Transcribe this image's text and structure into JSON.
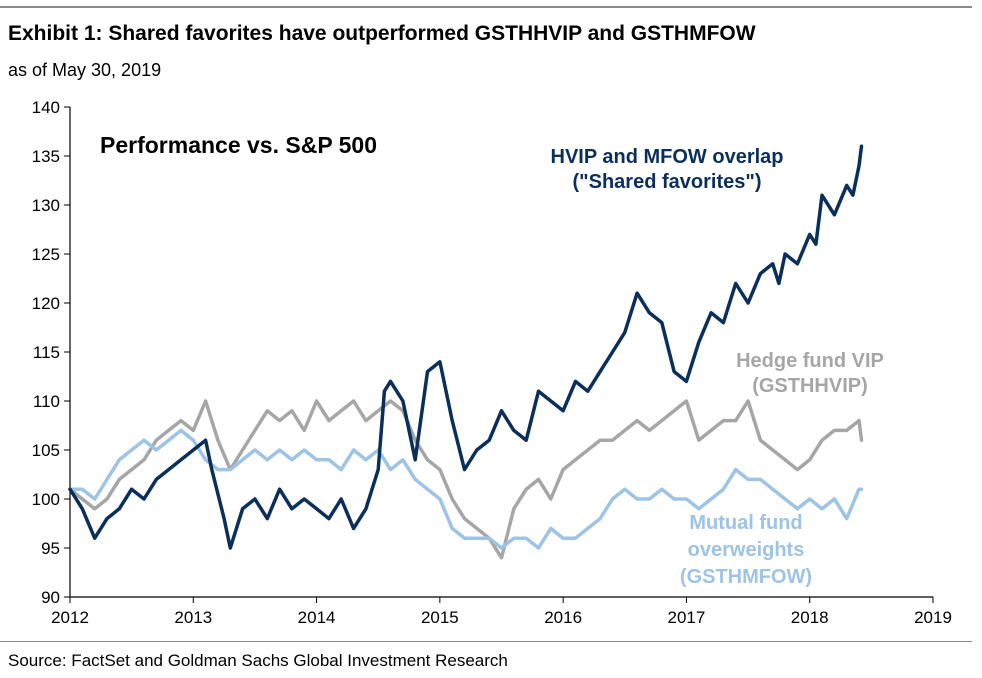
{
  "header": {
    "title": "Exhibit 1: Shared favorites have outperformed GSTHHVIP and GSTHMFOW",
    "subtitle": "as of May 30, 2019"
  },
  "footer": {
    "source": "Source:  FactSet and Goldman Sachs Global Investment Research"
  },
  "chart_data": {
    "type": "line",
    "title": "Performance vs. S&P 500",
    "xlabel": "",
    "ylabel": "",
    "xlim": [
      2012,
      2019
    ],
    "ylim": [
      90,
      140
    ],
    "x_ticks": [
      "2012",
      "2013",
      "2014",
      "2015",
      "2016",
      "2017",
      "2018",
      "2019"
    ],
    "y_ticks": [
      "90",
      "95",
      "100",
      "105",
      "110",
      "115",
      "120",
      "125",
      "130",
      "135",
      "140"
    ],
    "grid": false,
    "legend": "inline labels",
    "series": [
      {
        "name": "HVIP and MFOW overlap (\"Shared favorites\")",
        "label_lines": [
          "HVIP and MFOW overlap",
          "(\"Shared favorites\")"
        ],
        "color": "#0b2f5b",
        "x": [
          2012.0,
          2012.1,
          2012.2,
          2012.3,
          2012.4,
          2012.5,
          2012.6,
          2012.7,
          2012.8,
          2012.9,
          2013.0,
          2013.1,
          2013.15,
          2013.25,
          2013.3,
          2013.4,
          2013.5,
          2013.6,
          2013.7,
          2013.8,
          2013.9,
          2014.0,
          2014.1,
          2014.2,
          2014.3,
          2014.4,
          2014.5,
          2014.55,
          2014.6,
          2014.7,
          2014.8,
          2014.9,
          2015.0,
          2015.1,
          2015.2,
          2015.3,
          2015.4,
          2015.5,
          2015.6,
          2015.7,
          2015.8,
          2015.9,
          2016.0,
          2016.1,
          2016.2,
          2016.3,
          2016.4,
          2016.5,
          2016.6,
          2016.7,
          2016.8,
          2016.9,
          2017.0,
          2017.1,
          2017.2,
          2017.3,
          2017.4,
          2017.5,
          2017.6,
          2017.7,
          2017.75,
          2017.8,
          2017.9,
          2018.0,
          2018.05,
          2018.1,
          2018.2,
          2018.3,
          2018.35,
          2018.4,
          2018.42
        ],
        "y": [
          101,
          99,
          96,
          98,
          99,
          101,
          100,
          102,
          103,
          104,
          105,
          106,
          103,
          98,
          95,
          99,
          100,
          98,
          101,
          99,
          100,
          99,
          98,
          100,
          97,
          99,
          103,
          111,
          112,
          110,
          104,
          113,
          114,
          108,
          103,
          105,
          106,
          109,
          107,
          106,
          111,
          110,
          109,
          112,
          111,
          113,
          115,
          117,
          121,
          119,
          118,
          113,
          112,
          116,
          119,
          118,
          122,
          120,
          123,
          124,
          122,
          125,
          124,
          127,
          126,
          131,
          129,
          132,
          131,
          134,
          136
        ]
      },
      {
        "name": "Hedge fund VIP (GSTHHVIP)",
        "label_lines": [
          "Hedge fund VIP",
          "(GSTHHVIP)"
        ],
        "color": "#a6a6a6",
        "x": [
          2012.0,
          2012.1,
          2012.2,
          2012.3,
          2012.4,
          2012.5,
          2012.6,
          2012.7,
          2012.8,
          2012.9,
          2013.0,
          2013.1,
          2013.2,
          2013.3,
          2013.4,
          2013.5,
          2013.6,
          2013.7,
          2013.8,
          2013.9,
          2014.0,
          2014.1,
          2014.2,
          2014.3,
          2014.4,
          2014.5,
          2014.6,
          2014.7,
          2014.8,
          2014.9,
          2015.0,
          2015.1,
          2015.2,
          2015.3,
          2015.4,
          2015.5,
          2015.6,
          2015.7,
          2015.8,
          2015.9,
          2016.0,
          2016.1,
          2016.2,
          2016.3,
          2016.4,
          2016.5,
          2016.6,
          2016.7,
          2016.8,
          2016.9,
          2017.0,
          2017.1,
          2017.2,
          2017.3,
          2017.4,
          2017.5,
          2017.6,
          2017.7,
          2017.8,
          2017.9,
          2018.0,
          2018.1,
          2018.2,
          2018.3,
          2018.4,
          2018.42
        ],
        "y": [
          101,
          100,
          99,
          100,
          102,
          103,
          104,
          106,
          107,
          108,
          107,
          110,
          106,
          103,
          105,
          107,
          109,
          108,
          109,
          107,
          110,
          108,
          109,
          110,
          108,
          109,
          110,
          109,
          106,
          104,
          103,
          100,
          98,
          97,
          96,
          94,
          99,
          101,
          102,
          100,
          103,
          104,
          105,
          106,
          106,
          107,
          108,
          107,
          108,
          109,
          110,
          106,
          107,
          108,
          108,
          110,
          106,
          105,
          104,
          103,
          104,
          106,
          107,
          107,
          108,
          106
        ]
      },
      {
        "name": "Mutual fund overweights (GSTHMFOW)",
        "label_lines": [
          "Mutual fund",
          "overweights",
          "(GSTHMFOW)"
        ],
        "color": "#9dc3e6",
        "x": [
          2012.0,
          2012.1,
          2012.2,
          2012.3,
          2012.4,
          2012.5,
          2012.6,
          2012.7,
          2012.8,
          2012.9,
          2013.0,
          2013.1,
          2013.2,
          2013.3,
          2013.4,
          2013.5,
          2013.6,
          2013.7,
          2013.8,
          2013.9,
          2014.0,
          2014.1,
          2014.2,
          2014.3,
          2014.4,
          2014.5,
          2014.6,
          2014.7,
          2014.8,
          2014.9,
          2015.0,
          2015.1,
          2015.2,
          2015.3,
          2015.4,
          2015.5,
          2015.6,
          2015.7,
          2015.8,
          2015.9,
          2016.0,
          2016.1,
          2016.2,
          2016.3,
          2016.4,
          2016.5,
          2016.6,
          2016.7,
          2016.8,
          2016.9,
          2017.0,
          2017.1,
          2017.2,
          2017.3,
          2017.4,
          2017.5,
          2017.6,
          2017.7,
          2017.8,
          2017.9,
          2018.0,
          2018.1,
          2018.2,
          2018.3,
          2018.4,
          2018.42
        ],
        "y": [
          101,
          101,
          100,
          102,
          104,
          105,
          106,
          105,
          106,
          107,
          106,
          104,
          103,
          103,
          104,
          105,
          104,
          105,
          104,
          105,
          104,
          104,
          103,
          105,
          104,
          105,
          103,
          104,
          102,
          101,
          100,
          97,
          96,
          96,
          96,
          95,
          96,
          96,
          95,
          97,
          96,
          96,
          97,
          98,
          100,
          101,
          100,
          100,
          101,
          100,
          100,
          99,
          100,
          101,
          103,
          102,
          102,
          101,
          100,
          99,
          100,
          99,
          100,
          98,
          101,
          101
        ]
      }
    ]
  }
}
